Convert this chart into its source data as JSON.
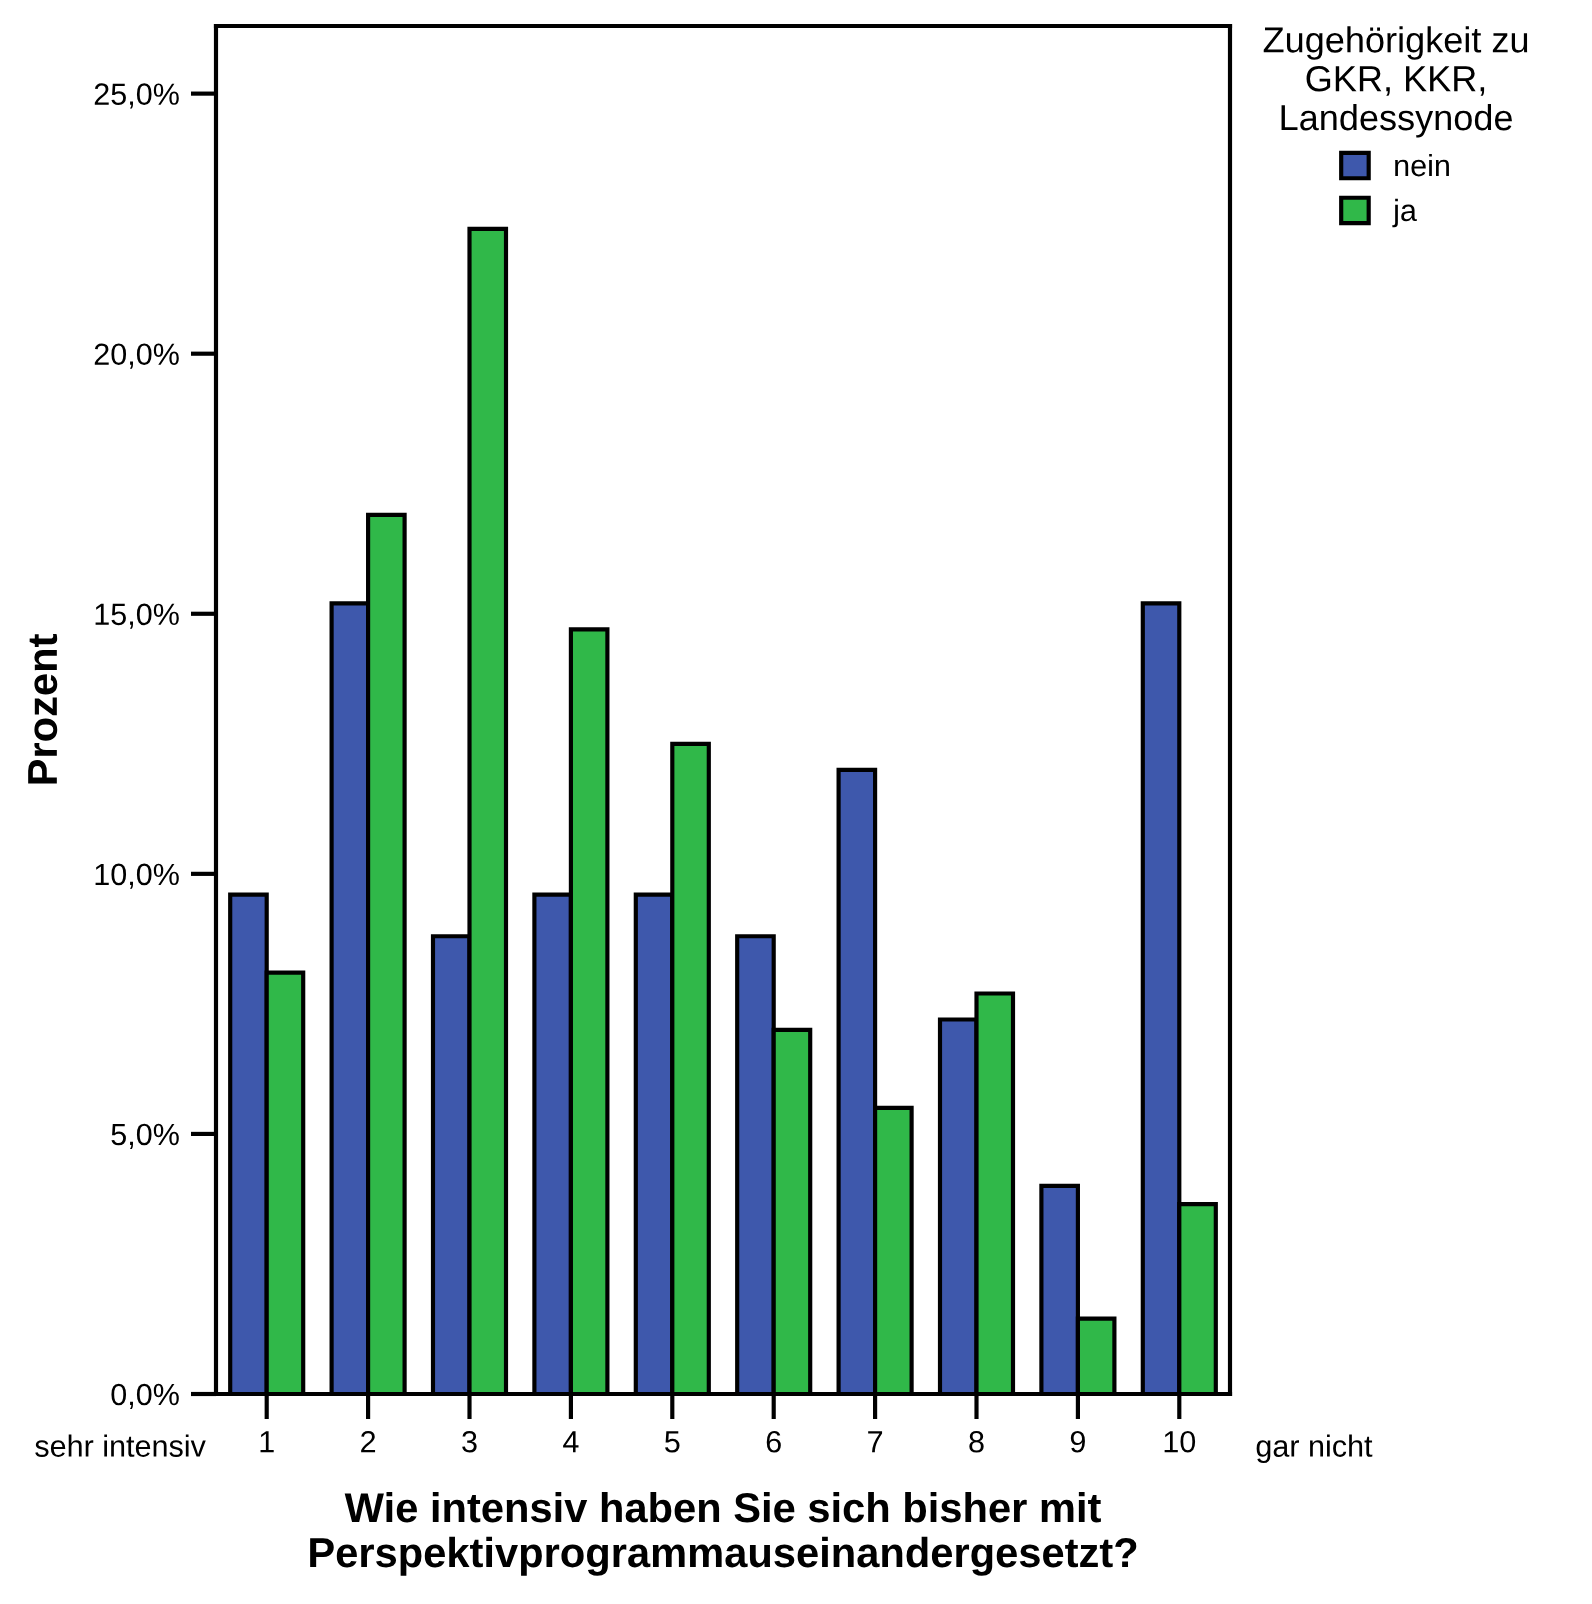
{
  "chart_data": {
    "type": "bar",
    "xlabel": "Wie intensiv haben Sie sich bisher mit Perspektivprogrammauseinandergesetzt?",
    "ylabel": "Prozent",
    "legend_title": "Zugehörigkeit zu\nGKR, KKR,\nLandessynode",
    "categories": [
      "1",
      "2",
      "3",
      "4",
      "5",
      "6",
      "7",
      "8",
      "9",
      "10"
    ],
    "series": [
      {
        "name": "nein",
        "color": "#3e58ac",
        "values": [
          9.6,
          15.2,
          8.8,
          9.6,
          9.6,
          8.8,
          12.0,
          7.2,
          4.0,
          15.2
        ]
      },
      {
        "name": "ja",
        "color": "#30b849",
        "values": [
          8.1,
          16.9,
          22.4,
          14.7,
          12.5,
          7.0,
          5.5,
          7.7,
          1.45,
          3.65
        ]
      }
    ],
    "ylim": [
      0,
      26.3
    ],
    "yticks": [
      {
        "value": 0,
        "label": "0,0%"
      },
      {
        "value": 5,
        "label": "5,0%"
      },
      {
        "value": 10,
        "label": "10,0%"
      },
      {
        "value": 15,
        "label": "15,0%"
      },
      {
        "value": 20,
        "label": "20,0%"
      },
      {
        "value": 25,
        "label": "25,0%"
      }
    ],
    "annotations": [
      "sehr intensiv",
      "gar nicht"
    ],
    "legend": "top right",
    "grid": false
  }
}
